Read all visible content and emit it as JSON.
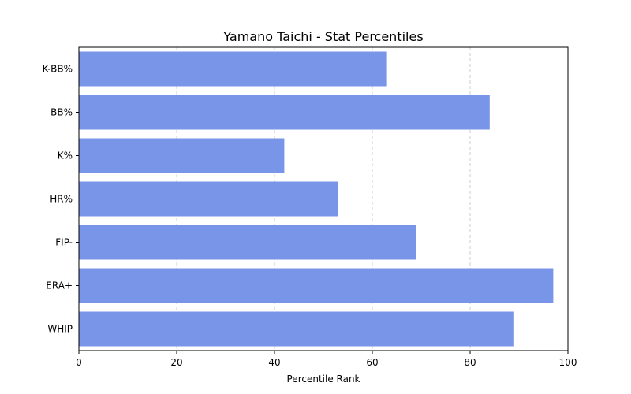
{
  "chart_data": {
    "type": "bar",
    "orientation": "horizontal",
    "title": "Yamano Taichi - Stat Percentiles",
    "xlabel": "Percentile Rank",
    "ylabel": "",
    "categories": [
      "K-BB%",
      "BB%",
      "K%",
      "HR%",
      "FIP-",
      "ERA+",
      "WHIP"
    ],
    "values": [
      63,
      84,
      42,
      53,
      69,
      97,
      89
    ],
    "xlim": [
      0,
      100
    ],
    "xticks": [
      0,
      20,
      40,
      60,
      80,
      100
    ],
    "grid": "x-axis dashed",
    "bar_color": "#7895e8"
  }
}
